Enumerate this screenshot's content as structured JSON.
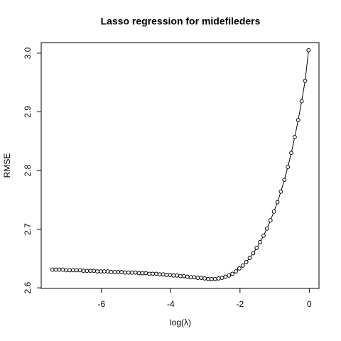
{
  "chart_data": {
    "type": "line",
    "title": "Lasso regression for midefileders",
    "x_label": "log(λ)",
    "y_label": "RMSE",
    "color": "#000000",
    "x": [
      -7.42,
      -7.32,
      -7.22,
      -7.12,
      -7.02,
      -6.92,
      -6.82,
      -6.72,
      -6.62,
      -6.52,
      -6.42,
      -6.32,
      -6.22,
      -6.12,
      -6.02,
      -5.92,
      -5.82,
      -5.72,
      -5.62,
      -5.52,
      -5.42,
      -5.32,
      -5.22,
      -5.12,
      -5.02,
      -4.92,
      -4.82,
      -4.72,
      -4.62,
      -4.52,
      -4.42,
      -4.32,
      -4.22,
      -4.12,
      -4.02,
      -3.92,
      -3.82,
      -3.72,
      -3.62,
      -3.52,
      -3.42,
      -3.32,
      -3.22,
      -3.12,
      -3.02,
      -2.92,
      -2.82,
      -2.72,
      -2.62,
      -2.52,
      -2.42,
      -2.32,
      -2.22,
      -2.12,
      -2.02,
      -1.92,
      -1.82,
      -1.72,
      -1.62,
      -1.52,
      -1.42,
      -1.32,
      -1.22,
      -1.12,
      -1.02,
      -0.92,
      -0.82,
      -0.72,
      -0.62,
      -0.52,
      -0.42,
      -0.32,
      -0.22,
      -0.12,
      -0.02
    ],
    "values": [
      2.631,
      2.631,
      2.631,
      2.631,
      2.63,
      2.63,
      2.63,
      2.63,
      2.63,
      2.629,
      2.629,
      2.629,
      2.629,
      2.628,
      2.628,
      2.628,
      2.628,
      2.627,
      2.627,
      2.627,
      2.627,
      2.626,
      2.626,
      2.626,
      2.626,
      2.625,
      2.625,
      2.625,
      2.624,
      2.624,
      2.624,
      2.623,
      2.623,
      2.622,
      2.622,
      2.621,
      2.621,
      2.62,
      2.62,
      2.619,
      2.618,
      2.618,
      2.617,
      2.617,
      2.616,
      2.615,
      2.615,
      2.615,
      2.616,
      2.617,
      2.619,
      2.621,
      2.624,
      2.628,
      2.633,
      2.638,
      2.644,
      2.651,
      2.659,
      2.668,
      2.678,
      2.689,
      2.701,
      2.715,
      2.73,
      2.746,
      2.764,
      2.784,
      2.806,
      2.83,
      2.857,
      2.886,
      2.918,
      2.953,
      3.005
    ],
    "xlim": [
      -7.74,
      0.28
    ],
    "ylim": [
      2.599,
      3.018
    ],
    "xticks": [
      -6,
      -4,
      -2,
      0
    ],
    "yticks": [
      2.6,
      2.7,
      2.8,
      2.9,
      {
        "value": 3,
        "label": "3.0"
      }
    ]
  }
}
